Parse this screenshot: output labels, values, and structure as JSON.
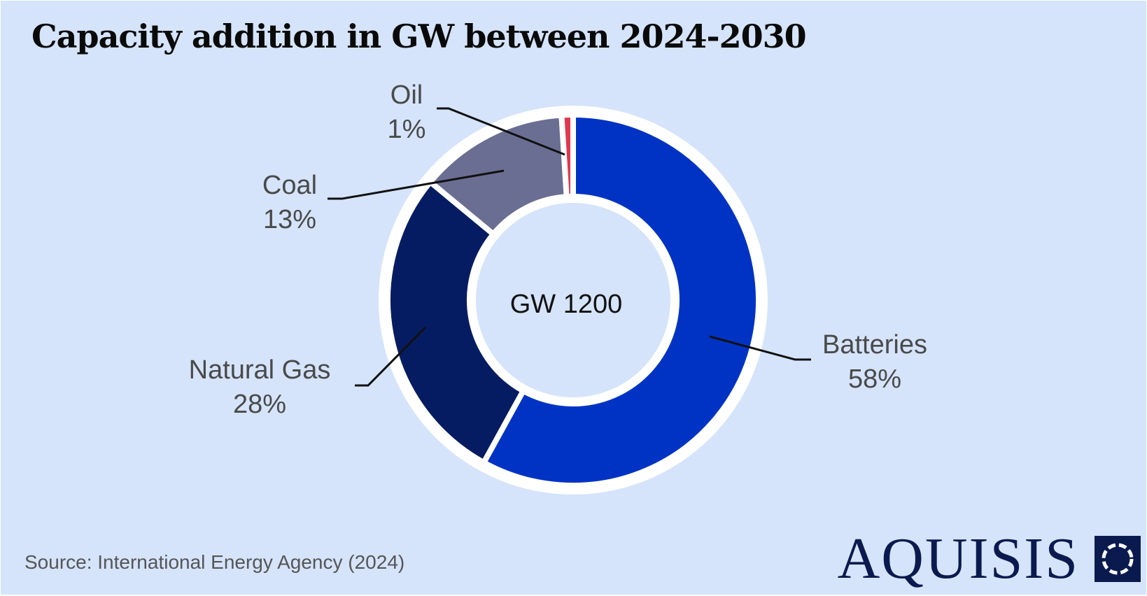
{
  "chart_data": {
    "type": "pie",
    "variant": "donut",
    "title": "Capacity addition in GW between 2024-2030",
    "center_label": "GW 1200",
    "slices": [
      {
        "name": "Batteries",
        "value": 58,
        "label": "58%",
        "color": "#0033c4"
      },
      {
        "name": "Natural Gas",
        "value": 28,
        "label": "28%",
        "color": "#061c62"
      },
      {
        "name": "Coal",
        "value": 13,
        "label": "13%",
        "color": "#6a6e92"
      },
      {
        "name": "Oil",
        "value": 1,
        "label": "1%",
        "color": "#e0384f"
      }
    ],
    "slice_order": "clockwise from top",
    "label_style": "outside with leader lines"
  },
  "source": "Source: International Energy Agency (2024)",
  "brand": {
    "name": "AQUISIS",
    "logo_icon": "dotted-circle-square-icon",
    "color": "#0b1a4e"
  },
  "colors": {
    "background": "#d5e4fa",
    "separator": "#ffffff"
  }
}
